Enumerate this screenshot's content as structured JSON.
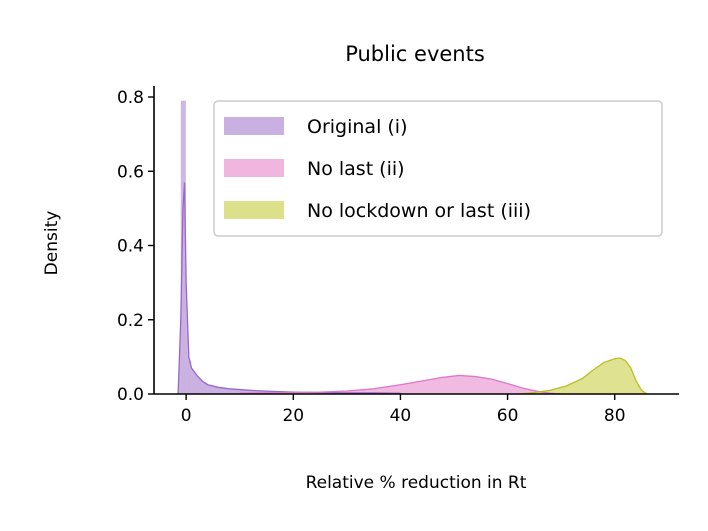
{
  "chart_data": {
    "type": "area",
    "title": "Public events",
    "xlabel": "Relative % reduction in Rt",
    "ylabel": "Density",
    "xlim": [
      -6,
      92
    ],
    "ylim": [
      0,
      0.83
    ],
    "xticks": [
      0,
      20,
      40,
      60,
      80
    ],
    "xtick_labels": [
      "0",
      "20",
      "40",
      "60",
      "80"
    ],
    "yticks": [
      0.0,
      0.2,
      0.4,
      0.6,
      0.8
    ],
    "ytick_labels": [
      "0.0",
      "0.2",
      "0.4",
      "0.6",
      "0.8"
    ],
    "grid": false,
    "legend_position": "top-right",
    "series": [
      {
        "name": "Original (i)",
        "color": "#9966cc",
        "fill": "#c9b0e0",
        "kde": [
          [
            -1.5,
            0.0
          ],
          [
            -1.0,
            0.2
          ],
          [
            -0.6,
            0.5
          ],
          [
            -0.3,
            0.57
          ],
          [
            0.0,
            0.3
          ],
          [
            0.5,
            0.1
          ],
          [
            1,
            0.07
          ],
          [
            2,
            0.05
          ],
          [
            3,
            0.035
          ],
          [
            4,
            0.025
          ],
          [
            6,
            0.018
          ],
          [
            8,
            0.014
          ],
          [
            10,
            0.012
          ],
          [
            13,
            0.009
          ],
          [
            16,
            0.007
          ],
          [
            20,
            0.005
          ],
          [
            25,
            0.004
          ],
          [
            30,
            0.003
          ],
          [
            35,
            0.003
          ],
          [
            40,
            0.002
          ]
        ],
        "hist_bins": [
          [
            -1.0,
            0.79
          ],
          [
            0.0,
            0.09
          ],
          [
            1,
            0.05
          ],
          [
            2,
            0.04
          ],
          [
            3,
            0.03
          ],
          [
            4,
            0.025
          ],
          [
            5,
            0.02
          ],
          [
            6,
            0.016
          ],
          [
            8,
            0.013
          ],
          [
            10,
            0.011
          ],
          [
            12,
            0.009
          ],
          [
            14,
            0.008
          ],
          [
            16,
            0.007
          ],
          [
            18,
            0.006
          ],
          [
            20,
            0.005
          ],
          [
            24,
            0.004
          ],
          [
            28,
            0.003
          ],
          [
            32,
            0.003
          ],
          [
            36,
            0.002
          ]
        ]
      },
      {
        "name": "No last (ii)",
        "color": "#dd77cc",
        "fill": "#f0b6df",
        "kde": [
          [
            10,
            0.002
          ],
          [
            20,
            0.004
          ],
          [
            25,
            0.005
          ],
          [
            30,
            0.008
          ],
          [
            35,
            0.014
          ],
          [
            40,
            0.025
          ],
          [
            44,
            0.035
          ],
          [
            48,
            0.045
          ],
          [
            51,
            0.05
          ],
          [
            54,
            0.047
          ],
          [
            57,
            0.04
          ],
          [
            60,
            0.028
          ],
          [
            63,
            0.015
          ],
          [
            66,
            0.006
          ],
          [
            68,
            0.002
          ],
          [
            70,
            0.0
          ]
        ]
      },
      {
        "name": "No lockdown or last (iii)",
        "color": "#bcbd22",
        "fill": "#dde08a",
        "kde": [
          [
            62,
            0.0
          ],
          [
            65,
            0.004
          ],
          [
            68,
            0.01
          ],
          [
            71,
            0.022
          ],
          [
            74,
            0.042
          ],
          [
            76,
            0.065
          ],
          [
            78,
            0.085
          ],
          [
            80,
            0.095
          ],
          [
            81,
            0.097
          ],
          [
            82,
            0.09
          ],
          [
            83,
            0.07
          ],
          [
            84,
            0.035
          ],
          [
            85,
            0.01
          ],
          [
            86,
            0.0
          ]
        ]
      }
    ]
  }
}
